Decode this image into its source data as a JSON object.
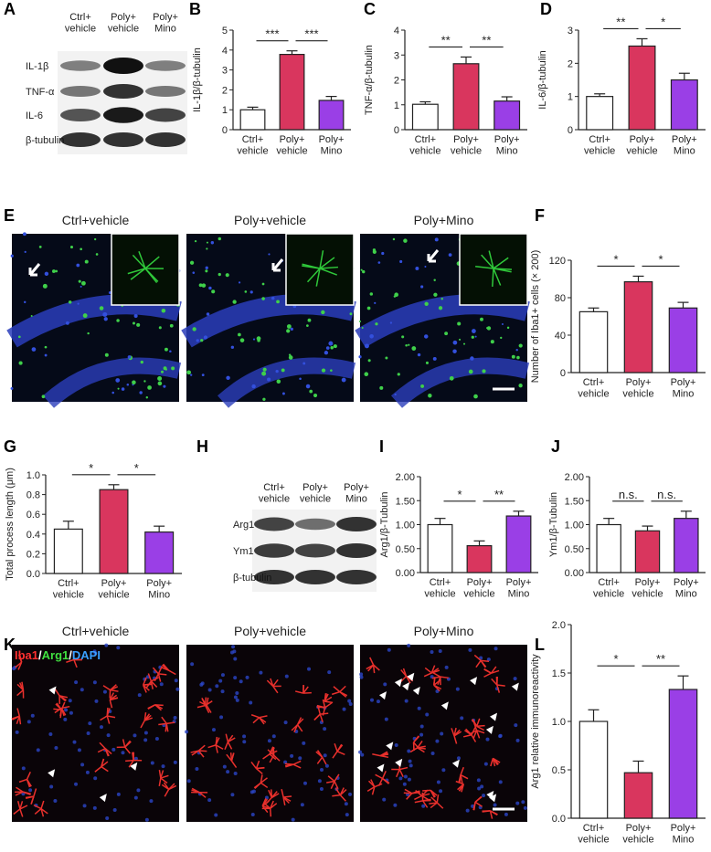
{
  "panel_letters": [
    "A",
    "B",
    "C",
    "D",
    "E",
    "F",
    "G",
    "H",
    "I",
    "J",
    "K",
    "L"
  ],
  "blot_A": {
    "columns": [
      "Ctrl+\nvehicle",
      "Poly+\nvehicle",
      "Poly+\nMino"
    ],
    "rows": [
      "IL-1β",
      "TNF-α",
      "IL-6",
      "β-tubulin"
    ]
  },
  "blot_H": {
    "columns": [
      "Ctrl+\nvehicle",
      "Poly+\nvehicle",
      "Poly+\nMino"
    ],
    "rows": [
      "Arg1",
      "Ym1",
      "β-tubulin"
    ]
  },
  "images_E": {
    "titles": [
      "Ctrl+vehicle",
      "Poly+vehicle",
      "Poly+Mino"
    ]
  },
  "images_K": {
    "titles": [
      "Ctrl+vehicle",
      "Poly+vehicle",
      "Poly+Mino"
    ],
    "stain_label": [
      "Iba1",
      "/",
      "Arg1",
      "/",
      "DAPI"
    ]
  },
  "chart_data": [
    {
      "type": "bar",
      "ylabel": "IL-1β/β-tubulin",
      "categories": [
        "Ctrl+\nvehicle",
        "Poly+\nvehicle",
        "Poly+\nMino"
      ],
      "values": [
        1.0,
        3.78,
        1.47
      ],
      "errors": [
        0.13,
        0.18,
        0.2
      ],
      "colors": [
        "#ffffff",
        "#d9365e",
        "#9a3fe6"
      ],
      "ylim": [
        0,
        5
      ],
      "yticks": [
        0,
        1,
        2,
        3,
        4,
        5
      ],
      "annotations": [
        "***",
        "***"
      ]
    },
    {
      "type": "bar",
      "ylabel": "TNF-α/β-tubulin",
      "categories": [
        "Ctrl+\nvehicle",
        "Poly+\nvehicle",
        "Poly+\nMino"
      ],
      "values": [
        1.02,
        2.65,
        1.15
      ],
      "errors": [
        0.1,
        0.27,
        0.17
      ],
      "colors": [
        "#ffffff",
        "#d9365e",
        "#9a3fe6"
      ],
      "ylim": [
        0,
        4
      ],
      "yticks": [
        0,
        1,
        2,
        3,
        4
      ],
      "annotations": [
        "**",
        "**"
      ]
    },
    {
      "type": "bar",
      "ylabel": "IL-6/β-tubulin",
      "categories": [
        "Ctrl+\nvehicle",
        "Poly+\nvehicle",
        "Poly+\nMino"
      ],
      "values": [
        1.0,
        2.52,
        1.5
      ],
      "errors": [
        0.08,
        0.22,
        0.2
      ],
      "colors": [
        "#ffffff",
        "#d9365e",
        "#9a3fe6"
      ],
      "ylim": [
        0,
        3
      ],
      "yticks": [
        0,
        1,
        2,
        3
      ],
      "annotations": [
        "**",
        "*"
      ]
    },
    {
      "type": "bar",
      "ylabel": "Number of Iba1+ cells (× 200)",
      "categories": [
        "Ctrl+\nvehicle",
        "Poly+\nvehicle",
        "Poly+\nMino"
      ],
      "values": [
        65,
        97,
        69
      ],
      "errors": [
        4,
        6,
        6
      ],
      "colors": [
        "#ffffff",
        "#d9365e",
        "#9a3fe6"
      ],
      "ylim": [
        0,
        120
      ],
      "yticks": [
        0,
        40,
        80,
        120
      ],
      "annotations": [
        "*",
        "*"
      ]
    },
    {
      "type": "bar",
      "ylabel": "Total process length (μm)",
      "categories": [
        "Ctrl+\nvehicle",
        "Poly+\nvehicle",
        "Poly+\nMino"
      ],
      "values": [
        0.45,
        0.85,
        0.42
      ],
      "errors": [
        0.08,
        0.05,
        0.06
      ],
      "colors": [
        "#ffffff",
        "#d9365e",
        "#9a3fe6"
      ],
      "ylim": [
        0,
        1
      ],
      "yticks": [
        {
          "value": 0,
          "label": "0.0"
        },
        0.2,
        0.4,
        0.6,
        0.8,
        {
          "value": 1,
          "label": "1.0"
        }
      ],
      "annotations": [
        "*",
        "*"
      ]
    },
    {
      "type": "bar",
      "ylabel": "Arg1/β-Tubulin",
      "categories": [
        "Ctrl+\nvehicle",
        "Poly+\nvehicle",
        "Poly+\nMino"
      ],
      "values": [
        1.0,
        0.56,
        1.18
      ],
      "errors": [
        0.13,
        0.1,
        0.1
      ],
      "colors": [
        "#ffffff",
        "#d9365e",
        "#9a3fe6"
      ],
      "ylim": [
        0,
        2
      ],
      "yticks": [
        {
          "value": 0,
          "label": "0.00"
        },
        {
          "value": 0.5,
          "label": "0.50"
        },
        {
          "value": 1,
          "label": "1.00"
        },
        {
          "value": 1.5,
          "label": "1.50"
        },
        {
          "value": 2,
          "label": "2.00"
        }
      ],
      "annotations": [
        "*",
        "**"
      ]
    },
    {
      "type": "bar",
      "ylabel": "Ym1/β-Tubulin",
      "categories": [
        "Ctrl+\nvehicle",
        "Poly+\nvehicle",
        "Poly+\nMino"
      ],
      "values": [
        1.0,
        0.87,
        1.13
      ],
      "errors": [
        0.13,
        0.1,
        0.15
      ],
      "colors": [
        "#ffffff",
        "#d9365e",
        "#9a3fe6"
      ],
      "ylim": [
        0,
        2
      ],
      "yticks": [
        {
          "value": 0,
          "label": "0.00"
        },
        {
          "value": 0.5,
          "label": "0.50"
        },
        {
          "value": 1,
          "label": "1.00"
        },
        {
          "value": 1.5,
          "label": "1.50"
        },
        {
          "value": 2,
          "label": "2.00"
        }
      ],
      "annotations": [
        "n.s.",
        "n.s."
      ]
    },
    {
      "type": "bar",
      "ylabel": "Arg1 relative immunoreactivity",
      "categories": [
        "Ctrl+\nvehicle",
        "Poly+\nvehicle",
        "Poly+\nMino"
      ],
      "values": [
        1.0,
        0.47,
        1.33
      ],
      "errors": [
        0.12,
        0.12,
        0.14
      ],
      "colors": [
        "#ffffff",
        "#d9365e",
        "#9a3fe6"
      ],
      "ylim": [
        0,
        2
      ],
      "yticks": [
        {
          "value": 0,
          "label": "0.0"
        },
        0.5,
        {
          "value": 1,
          "label": "1.0"
        },
        1.5,
        {
          "value": 2,
          "label": "2.0"
        }
      ],
      "annotations": [
        "*",
        "**"
      ]
    }
  ]
}
